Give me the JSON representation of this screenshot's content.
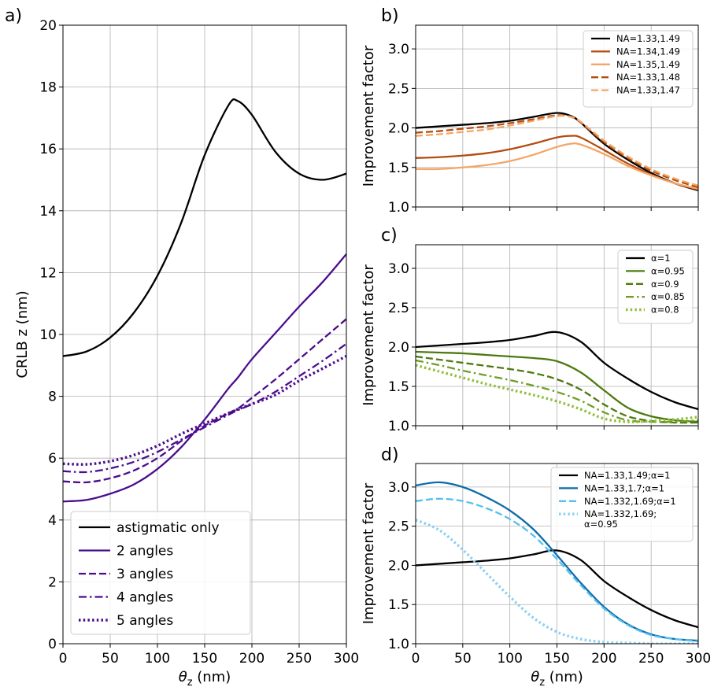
{
  "chart_data": [
    {
      "panel": "a)",
      "type": "line",
      "xlabel": "θz (nm)",
      "ylabel": "CRLB z (nm)",
      "xlim": [
        0,
        300
      ],
      "ylim": [
        0,
        20
      ],
      "xticks": [
        0,
        50,
        100,
        150,
        200,
        250,
        300
      ],
      "yticks": [
        0,
        2,
        4,
        6,
        8,
        10,
        12,
        14,
        16,
        18,
        20
      ],
      "grid": true,
      "legend_position": "lower-left",
      "x": [
        0,
        25,
        50,
        75,
        100,
        125,
        150,
        175,
        185,
        200,
        225,
        250,
        275,
        300
      ],
      "series": [
        {
          "name": "astigmatic only",
          "color": "#000000",
          "style": "solid",
          "values": [
            9.3,
            9.45,
            9.9,
            10.7,
            11.9,
            13.6,
            15.8,
            17.4,
            17.55,
            17.1,
            15.9,
            15.2,
            15.0,
            15.2
          ]
        },
        {
          "name": "2 angles",
          "color": "#4b0d8c",
          "style": "solid",
          "values": [
            4.6,
            4.65,
            4.85,
            5.15,
            5.65,
            6.35,
            7.25,
            8.25,
            8.6,
            9.2,
            10.05,
            10.9,
            11.7,
            12.6
          ]
        },
        {
          "name": "3 angles",
          "color": "#4b0d8c",
          "style": "dash",
          "values": [
            5.25,
            5.22,
            5.35,
            5.6,
            6.0,
            6.55,
            7.05,
            7.45,
            7.6,
            7.95,
            8.55,
            9.2,
            9.85,
            10.5
          ]
        },
        {
          "name": "4 angles",
          "color": "#4b0d8c",
          "style": "dashdot",
          "values": [
            5.58,
            5.55,
            5.67,
            5.88,
            6.2,
            6.6,
            7.0,
            7.4,
            7.55,
            7.75,
            8.15,
            8.65,
            9.15,
            9.7
          ]
        },
        {
          "name": "5 angles",
          "color": "#4b0d8c",
          "style": "dot",
          "values": [
            5.82,
            5.8,
            5.9,
            6.1,
            6.4,
            6.78,
            7.12,
            7.45,
            7.58,
            7.75,
            8.05,
            8.5,
            8.9,
            9.3
          ]
        }
      ]
    },
    {
      "panel": "b)",
      "type": "line",
      "xlabel": "",
      "ylabel": "Improvement factor",
      "xlim": [
        0,
        300
      ],
      "ylim": [
        1.0,
        3.3
      ],
      "xticks": [
        0,
        50,
        100,
        150,
        200,
        250,
        300
      ],
      "yticks": [
        1.0,
        1.5,
        2.0,
        2.5,
        3.0
      ],
      "grid": true,
      "legend_position": "top-right",
      "x": [
        0,
        25,
        50,
        75,
        100,
        125,
        150,
        165,
        175,
        200,
        225,
        250,
        275,
        300
      ],
      "series": [
        {
          "name": "NA=1.33,1.49",
          "color": "#000000",
          "style": "solid",
          "values": [
            2.0,
            2.02,
            2.04,
            2.06,
            2.09,
            2.14,
            2.19,
            2.15,
            2.07,
            1.8,
            1.6,
            1.43,
            1.3,
            1.21
          ]
        },
        {
          "name": "NA=1.34,1.49",
          "color": "#b34d10",
          "style": "solid",
          "values": [
            1.62,
            1.63,
            1.65,
            1.68,
            1.73,
            1.8,
            1.88,
            1.9,
            1.88,
            1.72,
            1.55,
            1.41,
            1.3,
            1.22
          ]
        },
        {
          "name": "NA=1.35,1.49",
          "color": "#f5a565",
          "style": "solid",
          "values": [
            1.48,
            1.48,
            1.5,
            1.53,
            1.58,
            1.66,
            1.76,
            1.8,
            1.79,
            1.67,
            1.52,
            1.4,
            1.3,
            1.23
          ]
        },
        {
          "name": "NA=1.33,1.48",
          "color": "#b34d10",
          "style": "dash",
          "values": [
            1.94,
            1.96,
            1.99,
            2.02,
            2.06,
            2.11,
            2.16,
            2.14,
            2.07,
            1.82,
            1.62,
            1.46,
            1.34,
            1.25
          ]
        },
        {
          "name": "NA=1.33,1.47",
          "color": "#f5a565",
          "style": "dash",
          "values": [
            1.9,
            1.92,
            1.95,
            1.98,
            2.03,
            2.09,
            2.15,
            2.14,
            2.08,
            1.84,
            1.64,
            1.48,
            1.36,
            1.27
          ]
        }
      ]
    },
    {
      "panel": "c)",
      "type": "line",
      "xlabel": "",
      "ylabel": "Improvement factor",
      "xlim": [
        0,
        300
      ],
      "ylim": [
        1.0,
        3.3
      ],
      "xticks": [
        0,
        50,
        100,
        150,
        200,
        250,
        300
      ],
      "yticks": [
        1.0,
        1.5,
        2.0,
        2.5,
        3.0
      ],
      "grid": true,
      "legend_position": "top-right",
      "x": [
        0,
        25,
        50,
        75,
        100,
        125,
        150,
        175,
        200,
        225,
        250,
        275,
        300
      ],
      "series": [
        {
          "name": "α=1",
          "color": "#000000",
          "style": "solid",
          "values": [
            2.0,
            2.02,
            2.04,
            2.06,
            2.09,
            2.14,
            2.19,
            2.07,
            1.8,
            1.6,
            1.43,
            1.3,
            1.21
          ]
        },
        {
          "name": "α=0.95",
          "color": "#4d7a0f",
          "style": "solid",
          "values": [
            1.94,
            1.93,
            1.92,
            1.9,
            1.88,
            1.86,
            1.82,
            1.68,
            1.45,
            1.23,
            1.12,
            1.07,
            1.05
          ]
        },
        {
          "name": "α=0.9",
          "color": "#4d7a0f",
          "style": "dash",
          "values": [
            1.88,
            1.84,
            1.8,
            1.76,
            1.72,
            1.67,
            1.59,
            1.46,
            1.27,
            1.12,
            1.06,
            1.04,
            1.04
          ]
        },
        {
          "name": "α=0.85",
          "color": "#6e9e23",
          "style": "dashdot",
          "values": [
            1.83,
            1.77,
            1.7,
            1.64,
            1.58,
            1.51,
            1.43,
            1.32,
            1.17,
            1.07,
            1.05,
            1.05,
            1.07
          ]
        },
        {
          "name": "α=0.8",
          "color": "#8fbf3a",
          "style": "dot",
          "values": [
            1.77,
            1.69,
            1.61,
            1.53,
            1.46,
            1.39,
            1.31,
            1.21,
            1.09,
            1.05,
            1.06,
            1.08,
            1.11
          ]
        }
      ]
    },
    {
      "panel": "d)",
      "type": "line",
      "xlabel": "θz (nm)",
      "ylabel": "Improvement factor",
      "xlim": [
        0,
        300
      ],
      "ylim": [
        1.0,
        3.3
      ],
      "xticks": [
        0,
        50,
        100,
        150,
        200,
        250,
        300
      ],
      "yticks": [
        1.0,
        1.5,
        2.0,
        2.5,
        3.0
      ],
      "grid": true,
      "legend_position": "top-right",
      "x": [
        0,
        25,
        50,
        75,
        100,
        125,
        150,
        175,
        200,
        225,
        250,
        275,
        300
      ],
      "series": [
        {
          "name": "NA=1.33,1.49;α=1",
          "color": "#000000",
          "style": "solid",
          "values": [
            2.0,
            2.02,
            2.04,
            2.06,
            2.09,
            2.14,
            2.19,
            2.07,
            1.8,
            1.6,
            1.43,
            1.3,
            1.21
          ]
        },
        {
          "name": "NA=1.33,1.7;α=1",
          "color": "#0f6ca8",
          "style": "solid",
          "values": [
            3.02,
            3.06,
            3.0,
            2.87,
            2.7,
            2.46,
            2.13,
            1.78,
            1.47,
            1.25,
            1.12,
            1.06,
            1.04
          ]
        },
        {
          "name": "NA=1.332,1.69;α=1",
          "color": "#55bff0",
          "style": "dash",
          "values": [
            2.82,
            2.85,
            2.82,
            2.73,
            2.59,
            2.38,
            2.08,
            1.75,
            1.45,
            1.24,
            1.11,
            1.06,
            1.03
          ]
        },
        {
          "name": "NA=1.332,1.69;\nα=0.95",
          "color": "#88d0f2",
          "style": "dot",
          "values": [
            2.58,
            2.45,
            2.2,
            1.9,
            1.6,
            1.33,
            1.15,
            1.06,
            1.02,
            1.01,
            1.0,
            1.0,
            1.0
          ]
        }
      ]
    }
  ]
}
